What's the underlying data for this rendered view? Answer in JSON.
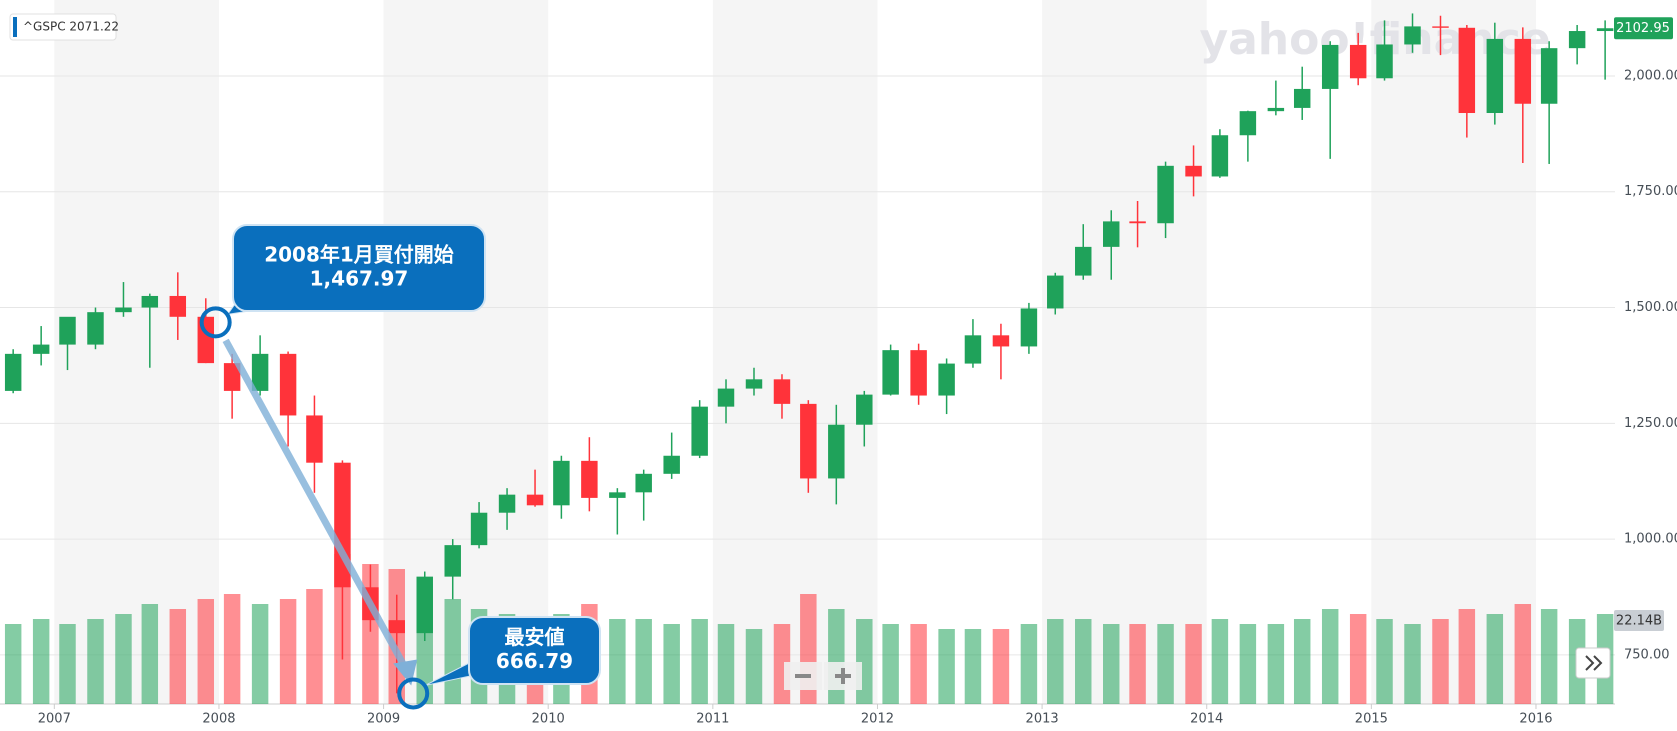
{
  "chart_data": {
    "type": "candlestick",
    "legend_label": "^GSPC 2071.22",
    "watermark": "yahoo!finance",
    "last_price": 2102.95,
    "volume_label": "22.14B",
    "up_color": "#1fa25a",
    "down_color": "#ff333a",
    "xlim": [
      2006.67,
      2016.48
    ],
    "xticks": [
      2007,
      2008,
      2009,
      2010,
      2011,
      2012,
      2013,
      2014,
      2015,
      2016
    ],
    "ylim": [
      644,
      2164
    ],
    "yticks": [
      {
        "value": 750,
        "label": "750.00"
      },
      {
        "value": 1000,
        "label": "1,000.00"
      },
      {
        "value": 1250,
        "label": "1,250.00"
      },
      {
        "value": 1500,
        "label": "1,500.00"
      },
      {
        "value": 1750,
        "label": "1,750.00"
      },
      {
        "value": 2000,
        "label": "2,000.00"
      }
    ],
    "grid": true,
    "volume_ylim": [
      0,
      40
    ],
    "x": [
      2006.75,
      2006.92,
      2007.08,
      2007.25,
      2007.42,
      2007.58,
      2007.75,
      2007.92,
      2008.08,
      2008.25,
      2008.42,
      2008.58,
      2008.75,
      2008.92,
      2009.08,
      2009.25,
      2009.42,
      2009.58,
      2009.75,
      2009.92,
      2010.08,
      2010.25,
      2010.42,
      2010.58,
      2010.75,
      2010.92,
      2011.08,
      2011.25,
      2011.42,
      2011.58,
      2011.75,
      2011.92,
      2012.08,
      2012.25,
      2012.42,
      2012.58,
      2012.75,
      2012.92,
      2013.08,
      2013.25,
      2013.42,
      2013.58,
      2013.75,
      2013.92,
      2014.08,
      2014.25,
      2014.42,
      2014.58,
      2014.75,
      2014.92,
      2015.08,
      2015.25,
      2015.42,
      2015.58,
      2015.75,
      2015.92,
      2016.08,
      2016.25,
      2016.42
    ],
    "open": [
      1320,
      1400,
      1420,
      1420,
      1490,
      1500,
      1525,
      1480,
      1380,
      1320,
      1400,
      1267,
      1165,
      896,
      825,
      797,
      919,
      987,
      1057,
      1096,
      1073,
      1169,
      1089,
      1101,
      1141,
      1180,
      1286,
      1325,
      1345,
      1292,
      1131,
      1247,
      1312,
      1408,
      1310,
      1379,
      1440,
      1416,
      1498,
      1569,
      1631,
      1686,
      1682,
      1806,
      1783,
      1872,
      1924,
      1931,
      1972,
      2067,
      1995,
      2068,
      2107,
      2104,
      1920,
      2080,
      1940,
      2060,
      2097
    ],
    "high": [
      1410,
      1460,
      1470,
      1500,
      1555,
      1530,
      1576,
      1520,
      1400,
      1440,
      1405,
      1310,
      1170,
      945,
      880,
      930,
      1000,
      1080,
      1110,
      1150,
      1180,
      1220,
      1110,
      1150,
      1230,
      1300,
      1345,
      1370,
      1356,
      1300,
      1290,
      1320,
      1420,
      1422,
      1390,
      1475,
      1465,
      1510,
      1575,
      1680,
      1710,
      1730,
      1815,
      1850,
      1885,
      1925,
      1990,
      2020,
      2075,
      2093,
      2120,
      2135,
      2130,
      2110,
      2115,
      2105,
      2075,
      2110,
      2120
    ],
    "low": [
      1315,
      1375,
      1365,
      1410,
      1480,
      1370,
      1430,
      1380,
      1260,
      1310,
      1200,
      1100,
      740,
      800,
      667,
      780,
      870,
      980,
      1020,
      1070,
      1044,
      1060,
      1010,
      1040,
      1130,
      1175,
      1250,
      1310,
      1260,
      1100,
      1075,
      1200,
      1310,
      1290,
      1270,
      1370,
      1345,
      1400,
      1485,
      1560,
      1560,
      1630,
      1650,
      1740,
      1780,
      1815,
      1915,
      1905,
      1821,
      1980,
      1990,
      2050,
      2045,
      1867,
      1895,
      1812,
      1810,
      2025,
      1992
    ],
    "close": [
      1400,
      1420,
      1480,
      1490,
      1500,
      1525,
      1480,
      1380,
      1320,
      1400,
      1267,
      1165,
      896,
      825,
      797,
      919,
      987,
      1057,
      1096,
      1073,
      1169,
      1089,
      1101,
      1141,
      1180,
      1286,
      1325,
      1345,
      1292,
      1131,
      1247,
      1312,
      1408,
      1310,
      1379,
      1440,
      1416,
      1498,
      1569,
      1631,
      1686,
      1682,
      1806,
      1783,
      1872,
      1924,
      1931,
      1972,
      2067,
      1995,
      2068,
      2107,
      2104,
      1920,
      2080,
      1940,
      2060,
      2097,
      2103
    ],
    "volume": [
      16,
      17,
      16,
      17,
      18,
      20,
      19,
      21,
      22,
      20,
      21,
      23,
      30,
      28,
      27,
      24,
      21,
      19,
      18,
      17,
      18,
      20,
      17,
      17,
      16,
      17,
      16,
      15,
      16,
      22,
      19,
      17,
      16,
      16,
      15,
      15,
      15,
      16,
      17,
      17,
      16,
      16,
      16,
      16,
      17,
      16,
      16,
      17,
      19,
      18,
      17,
      16,
      17,
      19,
      18,
      20,
      19,
      17,
      18
    ],
    "annotations": [
      {
        "lines": [
          "2008年1月買付開始",
          "1,467.97"
        ],
        "x": 2007.98,
        "y": 1467.97
      },
      {
        "lines": [
          "最安値",
          "666.79"
        ],
        "x": 2009.18,
        "y": 666.79
      }
    ]
  }
}
